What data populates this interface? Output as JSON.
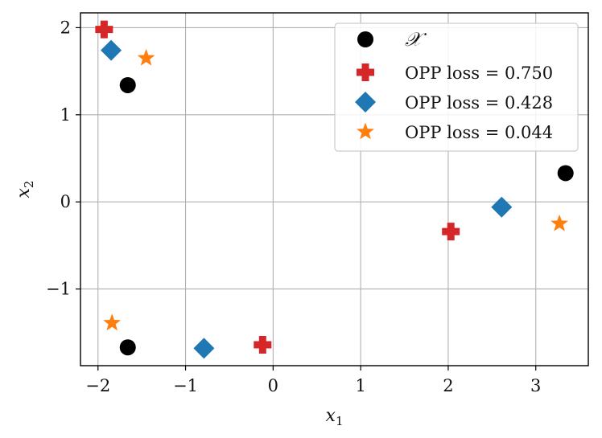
{
  "chart_data": {
    "type": "scatter",
    "xlabel": "x",
    "xlabel_sub": "1",
    "ylabel": "x",
    "ylabel_sub": "2",
    "xlim": [
      -2.2,
      3.6
    ],
    "ylim": [
      -1.88,
      2.17
    ],
    "xticks": [
      -2,
      -1,
      0,
      1,
      2,
      3
    ],
    "xtick_labels": [
      "−2",
      "−1",
      "0",
      "1",
      "2",
      "3"
    ],
    "yticks": [
      -1,
      0,
      1,
      2
    ],
    "ytick_labels": [
      "−1",
      "0",
      "1",
      "2"
    ],
    "grid": true,
    "legend_position": "top-right",
    "series": [
      {
        "name": "𝒳",
        "marker": "circle",
        "color": "#000000",
        "points": [
          [
            -1.66,
            1.34
          ],
          [
            3.34,
            0.33
          ],
          [
            -1.66,
            -1.67
          ]
        ]
      },
      {
        "name": "OPP loss = 0.750",
        "marker": "plus",
        "color": "#d62728",
        "points": [
          [
            -1.93,
            1.98
          ],
          [
            2.03,
            -0.34
          ],
          [
            -0.12,
            -1.64
          ]
        ]
      },
      {
        "name": "OPP loss = 0.428",
        "marker": "diamond",
        "color": "#1f77b4",
        "points": [
          [
            -1.85,
            1.74
          ],
          [
            2.61,
            -0.06
          ],
          [
            -0.79,
            -1.68
          ]
        ]
      },
      {
        "name": "OPP loss = 0.044",
        "marker": "star",
        "color": "#ff7f0e",
        "points": [
          [
            -1.45,
            1.65
          ],
          [
            3.27,
            -0.25
          ],
          [
            -1.84,
            -1.39
          ]
        ]
      }
    ]
  }
}
